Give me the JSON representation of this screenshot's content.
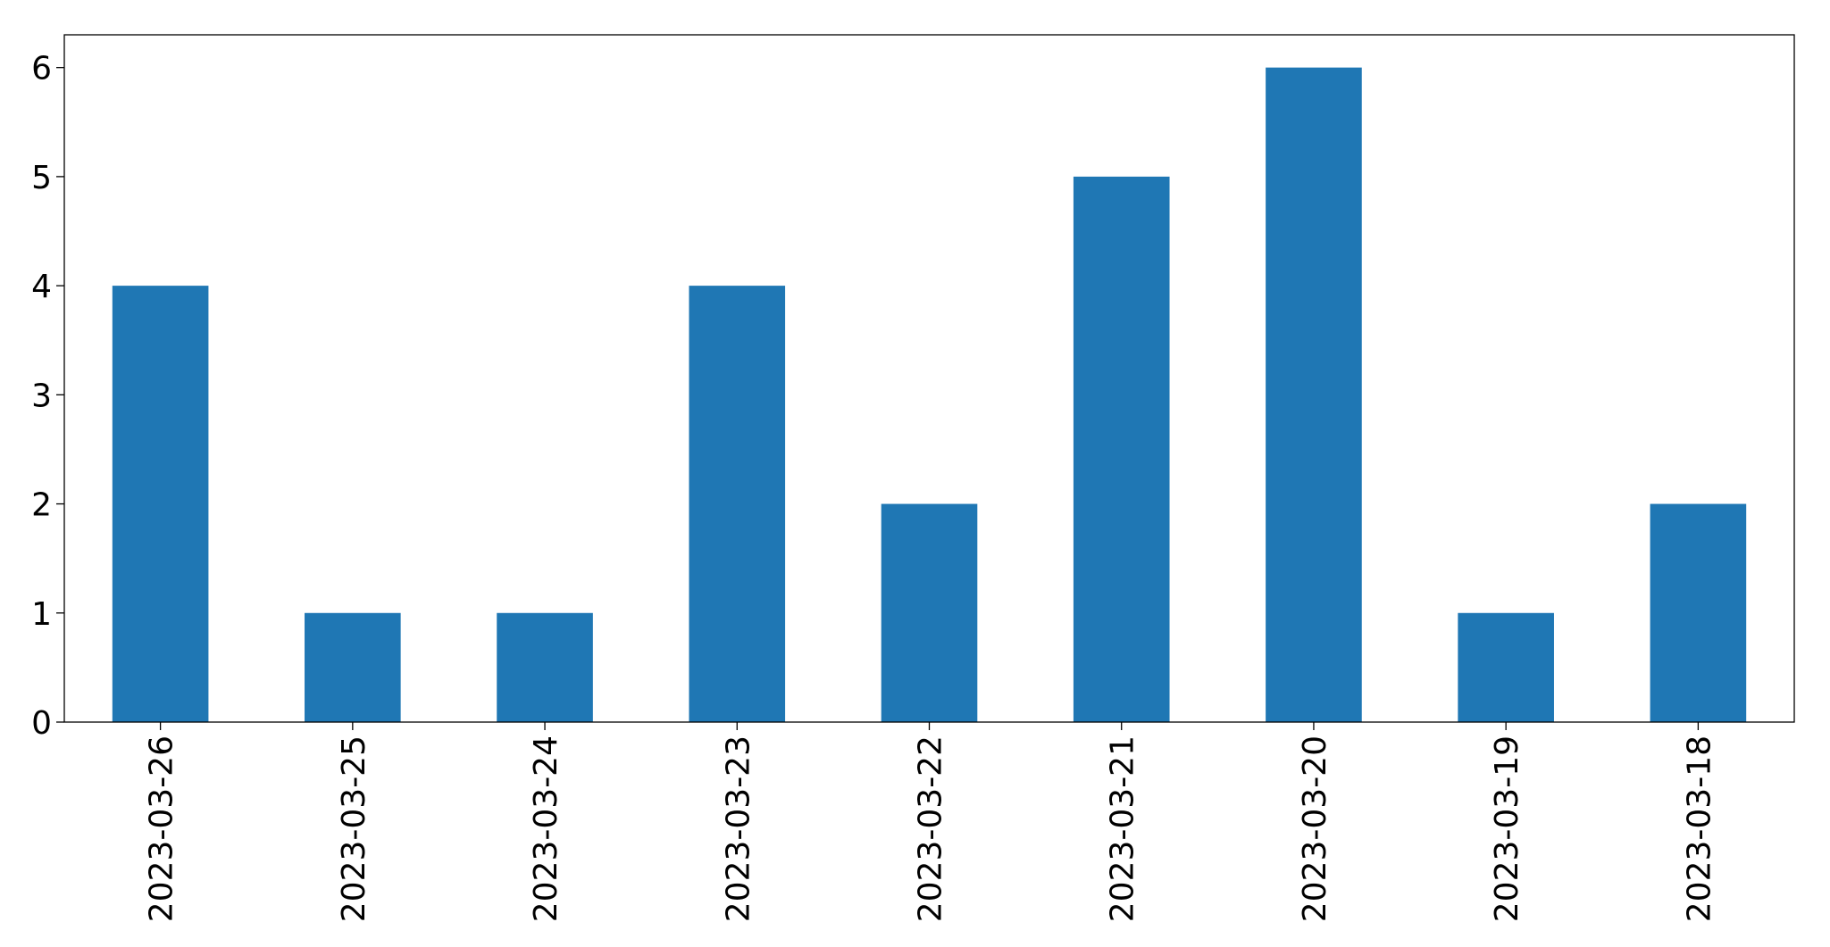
{
  "chart_data": {
    "type": "bar",
    "categories": [
      "2023-03-26",
      "2023-03-25",
      "2023-03-24",
      "2023-03-23",
      "2023-03-22",
      "2023-03-21",
      "2023-03-20",
      "2023-03-19",
      "2023-03-18"
    ],
    "values": [
      4,
      1,
      1,
      4,
      2,
      5,
      6,
      1,
      2
    ],
    "color": "#1f77b4",
    "ylim": [
      0,
      6.3
    ],
    "yticks": [
      0,
      1,
      2,
      3,
      4,
      5,
      6
    ],
    "grid": false
  }
}
